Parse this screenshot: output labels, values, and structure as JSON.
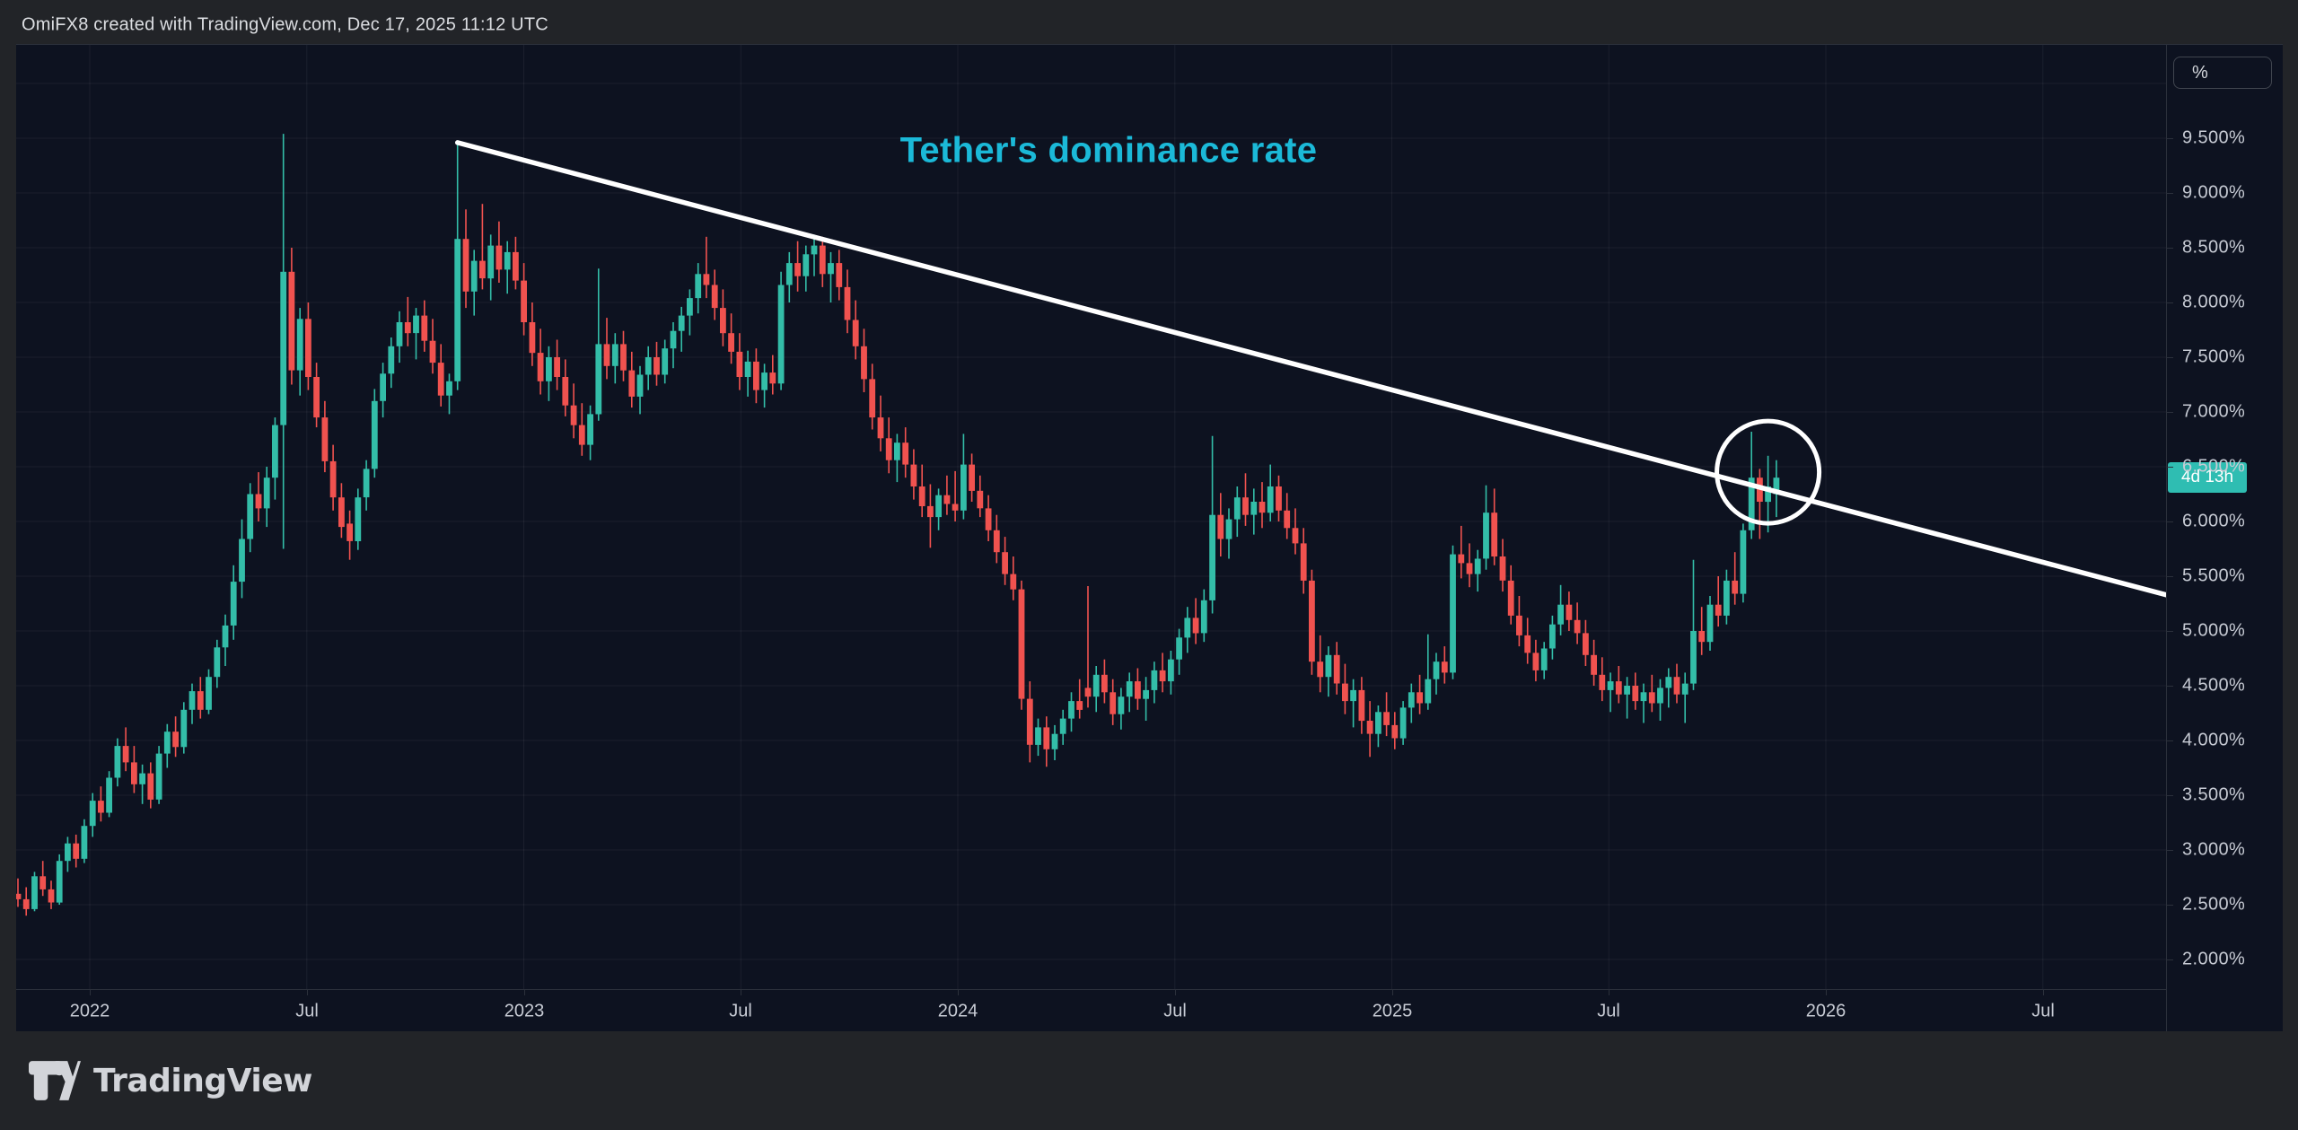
{
  "header": {
    "title": "OmiFX8 created with TradingView.com, Dec 17, 2025 11:12 UTC"
  },
  "footer": {
    "brand": "TradingView"
  },
  "price_axis": {
    "unit_button_label": "%",
    "countdown_badge": "4d 13h"
  },
  "colors": {
    "up": "#33bda8",
    "down": "#f0524f",
    "badge": "#2fbdb2",
    "annotation": "#ffffff",
    "title": "#1bb9d8",
    "grid": "rgba(247,249,252,0.06)",
    "plot_bg": "#0d1220",
    "frame_bg": "#222428",
    "axis_text": "#c7cbd4"
  },
  "chart_data": {
    "type": "candlestick",
    "title": "Tether's dominance rate",
    "unit": "%",
    "timeframe": "weekly",
    "x_range_note": "late 2021 through mid Dec 2025, axis extends to Jul 2026",
    "ylim": [
      1.7,
      10.5
    ],
    "grid": true,
    "y_ticks": [
      {
        "label": "9.500%",
        "value": 9.5
      },
      {
        "label": "9.000%",
        "value": 9.0
      },
      {
        "label": "8.500%",
        "value": 8.5
      },
      {
        "label": "8.000%",
        "value": 8.0
      },
      {
        "label": "7.500%",
        "value": 7.5
      },
      {
        "label": "7.000%",
        "value": 7.0
      },
      {
        "label": "6.500%",
        "value": 6.5
      },
      {
        "label": "6.000%",
        "value": 6.0
      },
      {
        "label": "5.500%",
        "value": 5.5
      },
      {
        "label": "5.000%",
        "value": 5.0
      },
      {
        "label": "4.500%",
        "value": 4.5
      },
      {
        "label": "4.000%",
        "value": 4.0
      },
      {
        "label": "3.500%",
        "value": 3.5
      },
      {
        "label": "3.000%",
        "value": 3.0
      },
      {
        "label": "2.500%",
        "value": 2.5
      },
      {
        "label": "2.000%",
        "value": 2.0
      }
    ],
    "x_ticks": [
      "2022",
      "Jul",
      "2023",
      "Jul",
      "2024",
      "Jul",
      "2025",
      "Jul",
      "2026",
      "Jul"
    ],
    "last_value": 6.4,
    "annotations": {
      "text_label": "Tether's dominance rate",
      "trendline": {
        "from_index": 53,
        "from_value": 9.46,
        "to_value": 5.33,
        "to_right_edge": true
      },
      "circle": {
        "index": 211,
        "value": 6.45
      }
    },
    "candles": [
      [
        2.6,
        2.74,
        2.48,
        2.55
      ],
      [
        2.55,
        2.66,
        2.4,
        2.46
      ],
      [
        2.46,
        2.8,
        2.44,
        2.76
      ],
      [
        2.76,
        2.9,
        2.58,
        2.64
      ],
      [
        2.64,
        2.72,
        2.46,
        2.52
      ],
      [
        2.52,
        2.96,
        2.5,
        2.9
      ],
      [
        2.9,
        3.12,
        2.8,
        3.06
      ],
      [
        3.06,
        3.14,
        2.84,
        2.92
      ],
      [
        2.92,
        3.28,
        2.88,
        3.22
      ],
      [
        3.22,
        3.52,
        3.12,
        3.45
      ],
      [
        3.45,
        3.58,
        3.26,
        3.34
      ],
      [
        3.34,
        3.72,
        3.3,
        3.66
      ],
      [
        3.66,
        4.02,
        3.58,
        3.95
      ],
      [
        3.95,
        4.12,
        3.72,
        3.8
      ],
      [
        3.8,
        3.95,
        3.52,
        3.6
      ],
      [
        3.6,
        3.78,
        3.42,
        3.7
      ],
      [
        3.7,
        3.8,
        3.38,
        3.46
      ],
      [
        3.46,
        3.95,
        3.42,
        3.88
      ],
      [
        3.88,
        4.15,
        3.75,
        4.08
      ],
      [
        4.08,
        4.22,
        3.85,
        3.94
      ],
      [
        3.94,
        4.35,
        3.88,
        4.28
      ],
      [
        4.28,
        4.52,
        4.15,
        4.45
      ],
      [
        4.45,
        4.58,
        4.2,
        4.28
      ],
      [
        4.28,
        4.65,
        4.24,
        4.58
      ],
      [
        4.58,
        4.92,
        4.48,
        4.85
      ],
      [
        4.85,
        5.15,
        4.68,
        5.05
      ],
      [
        5.05,
        5.6,
        4.92,
        5.45
      ],
      [
        5.45,
        6.02,
        5.3,
        5.84
      ],
      [
        5.84,
        6.35,
        5.72,
        6.25
      ],
      [
        6.25,
        6.45,
        6.0,
        6.12
      ],
      [
        6.12,
        6.5,
        5.95,
        6.4
      ],
      [
        6.4,
        6.95,
        6.2,
        6.88
      ],
      [
        6.88,
        9.54,
        5.75,
        8.28
      ],
      [
        8.28,
        8.5,
        7.25,
        7.38
      ],
      [
        7.38,
        7.95,
        7.15,
        7.85
      ],
      [
        7.85,
        8.0,
        7.2,
        7.32
      ],
      [
        7.32,
        7.45,
        6.86,
        6.95
      ],
      [
        6.95,
        7.1,
        6.45,
        6.55
      ],
      [
        6.55,
        6.7,
        6.1,
        6.22
      ],
      [
        6.22,
        6.35,
        5.85,
        5.95
      ],
      [
        5.98,
        6.1,
        5.65,
        5.82
      ],
      [
        5.82,
        6.3,
        5.74,
        6.22
      ],
      [
        6.22,
        6.56,
        6.1,
        6.48
      ],
      [
        6.48,
        7.21,
        6.4,
        7.1
      ],
      [
        7.1,
        7.45,
        6.95,
        7.35
      ],
      [
        7.35,
        7.68,
        7.22,
        7.6
      ],
      [
        7.6,
        7.92,
        7.45,
        7.82
      ],
      [
        7.82,
        8.05,
        7.6,
        7.72
      ],
      [
        7.72,
        7.95,
        7.48,
        7.88
      ],
      [
        7.88,
        8.02,
        7.55,
        7.65
      ],
      [
        7.65,
        7.85,
        7.35,
        7.45
      ],
      [
        7.45,
        7.62,
        7.05,
        7.15
      ],
      [
        7.15,
        7.35,
        6.98,
        7.28
      ],
      [
        7.28,
        9.48,
        7.2,
        8.58
      ],
      [
        8.58,
        8.85,
        7.95,
        8.1
      ],
      [
        8.1,
        8.48,
        7.88,
        8.38
      ],
      [
        8.38,
        8.9,
        8.12,
        8.22
      ],
      [
        8.22,
        8.62,
        8.02,
        8.52
      ],
      [
        8.52,
        8.74,
        8.18,
        8.3
      ],
      [
        8.3,
        8.56,
        8.08,
        8.46
      ],
      [
        8.46,
        8.6,
        8.12,
        8.2
      ],
      [
        8.2,
        8.36,
        7.7,
        7.82
      ],
      [
        7.82,
        8.0,
        7.42,
        7.54
      ],
      [
        7.54,
        7.76,
        7.16,
        7.28
      ],
      [
        7.28,
        7.6,
        7.1,
        7.5
      ],
      [
        7.5,
        7.66,
        7.2,
        7.32
      ],
      [
        7.32,
        7.48,
        6.96,
        7.06
      ],
      [
        7.06,
        7.26,
        6.76,
        6.88
      ],
      [
        6.88,
        7.08,
        6.6,
        6.7
      ],
      [
        6.7,
        7.06,
        6.56,
        6.98
      ],
      [
        6.98,
        8.31,
        6.92,
        7.62
      ],
      [
        7.62,
        7.86,
        7.3,
        7.42
      ],
      [
        7.42,
        7.72,
        7.26,
        7.62
      ],
      [
        7.62,
        7.74,
        7.28,
        7.38
      ],
      [
        7.38,
        7.55,
        7.04,
        7.14
      ],
      [
        7.14,
        7.42,
        6.98,
        7.34
      ],
      [
        7.34,
        7.6,
        7.2,
        7.5
      ],
      [
        7.5,
        7.64,
        7.24,
        7.34
      ],
      [
        7.34,
        7.66,
        7.26,
        7.58
      ],
      [
        7.58,
        7.82,
        7.4,
        7.74
      ],
      [
        7.74,
        7.96,
        7.55,
        7.88
      ],
      [
        7.88,
        8.12,
        7.7,
        8.04
      ],
      [
        8.04,
        8.36,
        7.9,
        8.26
      ],
      [
        8.26,
        8.6,
        8.04,
        8.16
      ],
      [
        8.16,
        8.3,
        7.84,
        7.95
      ],
      [
        7.95,
        8.12,
        7.6,
        7.72
      ],
      [
        7.72,
        7.9,
        7.44,
        7.55
      ],
      [
        7.55,
        7.72,
        7.2,
        7.32
      ],
      [
        7.32,
        7.56,
        7.14,
        7.46
      ],
      [
        7.46,
        7.58,
        7.08,
        7.2
      ],
      [
        7.2,
        7.44,
        7.04,
        7.36
      ],
      [
        7.36,
        7.52,
        7.16,
        7.26
      ],
      [
        7.26,
        8.28,
        7.2,
        8.16
      ],
      [
        8.16,
        8.46,
        8.0,
        8.36
      ],
      [
        8.36,
        8.56,
        8.1,
        8.24
      ],
      [
        8.24,
        8.52,
        8.1,
        8.44
      ],
      [
        8.44,
        8.62,
        8.24,
        8.52
      ],
      [
        8.52,
        8.6,
        8.14,
        8.26
      ],
      [
        8.26,
        8.46,
        8.0,
        8.36
      ],
      [
        8.36,
        8.48,
        8.02,
        8.14
      ],
      [
        8.14,
        8.3,
        7.72,
        7.84
      ],
      [
        7.84,
        8.02,
        7.48,
        7.6
      ],
      [
        7.6,
        7.76,
        7.18,
        7.3
      ],
      [
        7.3,
        7.44,
        6.84,
        6.95
      ],
      [
        6.95,
        7.15,
        6.64,
        6.76
      ],
      [
        6.76,
        6.95,
        6.44,
        6.56
      ],
      [
        6.56,
        6.8,
        6.36,
        6.72
      ],
      [
        6.72,
        6.86,
        6.4,
        6.52
      ],
      [
        6.52,
        6.66,
        6.2,
        6.32
      ],
      [
        6.32,
        6.52,
        6.04,
        6.14
      ],
      [
        6.14,
        6.34,
        5.76,
        6.04
      ],
      [
        6.04,
        6.3,
        5.92,
        6.24
      ],
      [
        6.24,
        6.42,
        6.06,
        6.16
      ],
      [
        6.16,
        6.46,
        6.0,
        6.1
      ],
      [
        6.1,
        6.8,
        6.02,
        6.52
      ],
      [
        6.52,
        6.62,
        6.18,
        6.28
      ],
      [
        6.28,
        6.42,
        6.04,
        6.12
      ],
      [
        6.12,
        6.24,
        5.82,
        5.92
      ],
      [
        5.92,
        6.06,
        5.62,
        5.72
      ],
      [
        5.72,
        5.86,
        5.42,
        5.52
      ],
      [
        5.52,
        5.68,
        5.28,
        5.38
      ],
      [
        5.38,
        5.46,
        4.28,
        4.38
      ],
      [
        4.38,
        4.54,
        3.8,
        3.96
      ],
      [
        3.96,
        4.2,
        3.86,
        4.12
      ],
      [
        4.12,
        4.22,
        3.76,
        3.92
      ],
      [
        3.92,
        4.14,
        3.82,
        4.06
      ],
      [
        4.06,
        4.28,
        3.96,
        4.2
      ],
      [
        4.2,
        4.44,
        4.08,
        4.36
      ],
      [
        4.36,
        4.56,
        4.2,
        4.28
      ],
      [
        4.48,
        5.41,
        4.3,
        4.4
      ],
      [
        4.4,
        4.68,
        4.26,
        4.6
      ],
      [
        4.6,
        4.74,
        4.34,
        4.44
      ],
      [
        4.44,
        4.56,
        4.14,
        4.24
      ],
      [
        4.24,
        4.48,
        4.1,
        4.4
      ],
      [
        4.4,
        4.62,
        4.26,
        4.54
      ],
      [
        4.54,
        4.66,
        4.28,
        4.38
      ],
      [
        4.38,
        4.58,
        4.18,
        4.46
      ],
      [
        4.46,
        4.72,
        4.34,
        4.64
      ],
      [
        4.64,
        4.8,
        4.44,
        4.54
      ],
      [
        4.54,
        4.82,
        4.42,
        4.74
      ],
      [
        4.74,
        5.02,
        4.6,
        4.94
      ],
      [
        4.94,
        5.22,
        4.8,
        5.12
      ],
      [
        5.12,
        5.3,
        4.88,
        4.98
      ],
      [
        4.98,
        5.38,
        4.9,
        5.28
      ],
      [
        5.28,
        6.78,
        5.16,
        6.06
      ],
      [
        6.06,
        6.26,
        5.68,
        5.84
      ],
      [
        5.84,
        6.12,
        5.66,
        6.02
      ],
      [
        6.02,
        6.32,
        5.86,
        6.22
      ],
      [
        6.22,
        6.44,
        5.96,
        6.06
      ],
      [
        6.06,
        6.3,
        5.88,
        6.18
      ],
      [
        6.18,
        6.36,
        5.94,
        6.08
      ],
      [
        6.08,
        6.52,
        6.0,
        6.32
      ],
      [
        6.32,
        6.42,
        6.0,
        6.1
      ],
      [
        6.1,
        6.26,
        5.84,
        5.94
      ],
      [
        5.94,
        6.12,
        5.7,
        5.8
      ],
      [
        5.8,
        5.94,
        5.34,
        5.46
      ],
      [
        5.46,
        5.56,
        4.6,
        4.72
      ],
      [
        4.72,
        4.96,
        4.44,
        4.58
      ],
      [
        4.58,
        4.86,
        4.4,
        4.78
      ],
      [
        4.78,
        4.9,
        4.42,
        4.52
      ],
      [
        4.52,
        4.7,
        4.24,
        4.36
      ],
      [
        4.36,
        4.56,
        4.12,
        4.46
      ],
      [
        4.46,
        4.58,
        4.06,
        4.18
      ],
      [
        4.18,
        4.36,
        3.85,
        4.06
      ],
      [
        4.06,
        4.32,
        3.94,
        4.26
      ],
      [
        4.26,
        4.44,
        4.04,
        4.14
      ],
      [
        4.14,
        4.26,
        3.92,
        4.02
      ],
      [
        4.02,
        4.36,
        3.96,
        4.3
      ],
      [
        4.3,
        4.52,
        4.16,
        4.44
      ],
      [
        4.44,
        4.6,
        4.24,
        4.34
      ],
      [
        4.34,
        4.97,
        4.28,
        4.56
      ],
      [
        4.56,
        4.8,
        4.42,
        4.72
      ],
      [
        4.72,
        4.86,
        4.52,
        4.62
      ],
      [
        4.62,
        5.78,
        4.56,
        5.7
      ],
      [
        5.7,
        5.96,
        5.48,
        5.62
      ],
      [
        5.62,
        5.8,
        5.4,
        5.52
      ],
      [
        5.52,
        5.74,
        5.36,
        5.66
      ],
      [
        5.66,
        6.33,
        5.56,
        6.08
      ],
      [
        6.08,
        6.3,
        5.6,
        5.68
      ],
      [
        5.68,
        5.84,
        5.36,
        5.46
      ],
      [
        5.46,
        5.6,
        5.06,
        5.14
      ],
      [
        5.14,
        5.32,
        4.86,
        4.96
      ],
      [
        4.96,
        5.12,
        4.7,
        4.8
      ],
      [
        4.8,
        4.92,
        4.54,
        4.64
      ],
      [
        4.64,
        4.9,
        4.56,
        4.84
      ],
      [
        4.84,
        5.14,
        4.74,
        5.06
      ],
      [
        5.06,
        5.42,
        4.96,
        5.24
      ],
      [
        5.24,
        5.36,
        5.0,
        5.1
      ],
      [
        5.1,
        5.26,
        4.88,
        4.98
      ],
      [
        4.98,
        5.1,
        4.68,
        4.78
      ],
      [
        4.78,
        4.92,
        4.5,
        4.6
      ],
      [
        4.6,
        4.76,
        4.36,
        4.46
      ],
      [
        4.46,
        4.62,
        4.26,
        4.54
      ],
      [
        4.54,
        4.68,
        4.34,
        4.42
      ],
      [
        4.42,
        4.58,
        4.2,
        4.5
      ],
      [
        4.5,
        4.62,
        4.28,
        4.36
      ],
      [
        4.36,
        4.52,
        4.16,
        4.44
      ],
      [
        4.44,
        4.6,
        4.26,
        4.34
      ],
      [
        4.34,
        4.56,
        4.18,
        4.48
      ],
      [
        4.48,
        4.66,
        4.3,
        4.58
      ],
      [
        4.58,
        4.7,
        4.34,
        4.42
      ],
      [
        4.42,
        4.62,
        4.16,
        4.52
      ],
      [
        4.52,
        5.65,
        4.46,
        5.0
      ],
      [
        5.0,
        5.22,
        4.78,
        4.9
      ],
      [
        4.9,
        5.32,
        4.82,
        5.24
      ],
      [
        5.24,
        5.5,
        5.04,
        5.14
      ],
      [
        5.14,
        5.56,
        5.06,
        5.46
      ],
      [
        5.46,
        5.72,
        5.24,
        5.34
      ],
      [
        5.34,
        5.98,
        5.26,
        5.92
      ],
      [
        5.92,
        6.82,
        5.84,
        6.4
      ],
      [
        6.4,
        6.48,
        5.84,
        6.18
      ],
      [
        6.18,
        6.6,
        5.9,
        6.32
      ],
      [
        6.25,
        6.56,
        6.04,
        6.4
      ]
    ]
  }
}
